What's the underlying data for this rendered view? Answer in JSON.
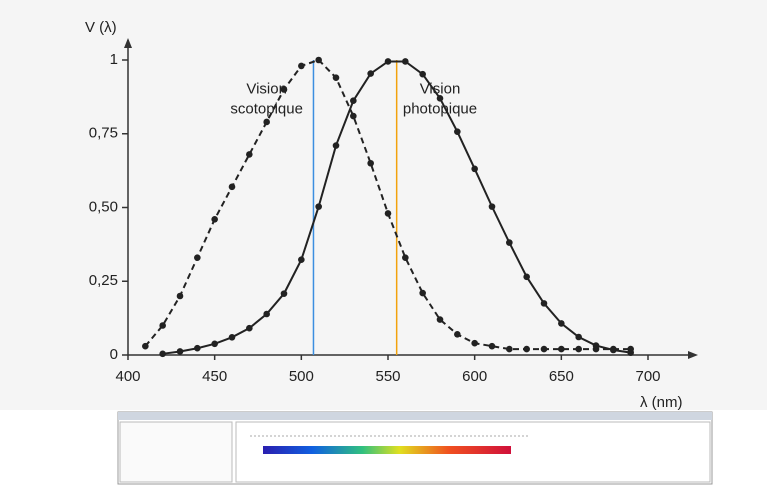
{
  "chart_data": {
    "type": "line",
    "y_label": "V (λ)",
    "x_label": "λ (nm)",
    "xlim": [
      400,
      700
    ],
    "ylim": [
      0,
      1
    ],
    "xticks": [
      400,
      450,
      500,
      550,
      600,
      650,
      700
    ],
    "yticks": [
      0,
      {
        "value": 0.25,
        "label": "0,25"
      },
      {
        "value": 0.5,
        "label": "0,50"
      },
      {
        "value": 0.75,
        "label": "0,75"
      },
      1
    ],
    "series": [
      {
        "color": "#222222",
        "dashed": true,
        "x": [
          410,
          420,
          430,
          440,
          450,
          460,
          470,
          480,
          490,
          500,
          510,
          520,
          530,
          540,
          550,
          560,
          570,
          580,
          590,
          600,
          610,
          620,
          630,
          640,
          650,
          660,
          670,
          680,
          690
        ],
        "values": [
          0.03,
          0.1,
          0.2,
          0.33,
          0.46,
          0.57,
          0.68,
          0.79,
          0.9,
          0.98,
          1,
          0.94,
          0.81,
          0.65,
          0.48,
          0.33,
          0.21,
          0.12,
          0.07,
          0.04,
          0.03,
          0.02,
          0.02,
          0.02,
          0.02,
          0.02,
          0.02,
          0.02,
          0.02
        ]
      },
      {
        "color": "#222222",
        "dashed": false,
        "x": [
          420,
          430,
          440,
          450,
          460,
          470,
          480,
          490,
          500,
          510,
          520,
          530,
          540,
          550,
          560,
          570,
          580,
          590,
          600,
          610,
          620,
          630,
          640,
          650,
          660,
          670,
          680,
          690
        ],
        "values": [
          0.004,
          0.012,
          0.023,
          0.038,
          0.06,
          0.091,
          0.139,
          0.208,
          0.323,
          0.503,
          0.71,
          0.862,
          0.954,
          0.995,
          0.995,
          0.952,
          0.87,
          0.757,
          0.631,
          0.503,
          0.381,
          0.265,
          0.175,
          0.107,
          0.061,
          0.032,
          0.017,
          0.008
        ]
      }
    ],
    "markers": [
      {
        "x": 507,
        "color": "#3b8ee0"
      },
      {
        "x": 555,
        "color": "#f2a20c"
      }
    ],
    "annotations": [
      {
        "lines": [
          "Vision",
          "scotopique"
        ],
        "x": 480,
        "y": 0.9
      },
      {
        "lines": [
          "Vision",
          "photopique"
        ],
        "x": 580,
        "y": 0.9
      }
    ]
  }
}
